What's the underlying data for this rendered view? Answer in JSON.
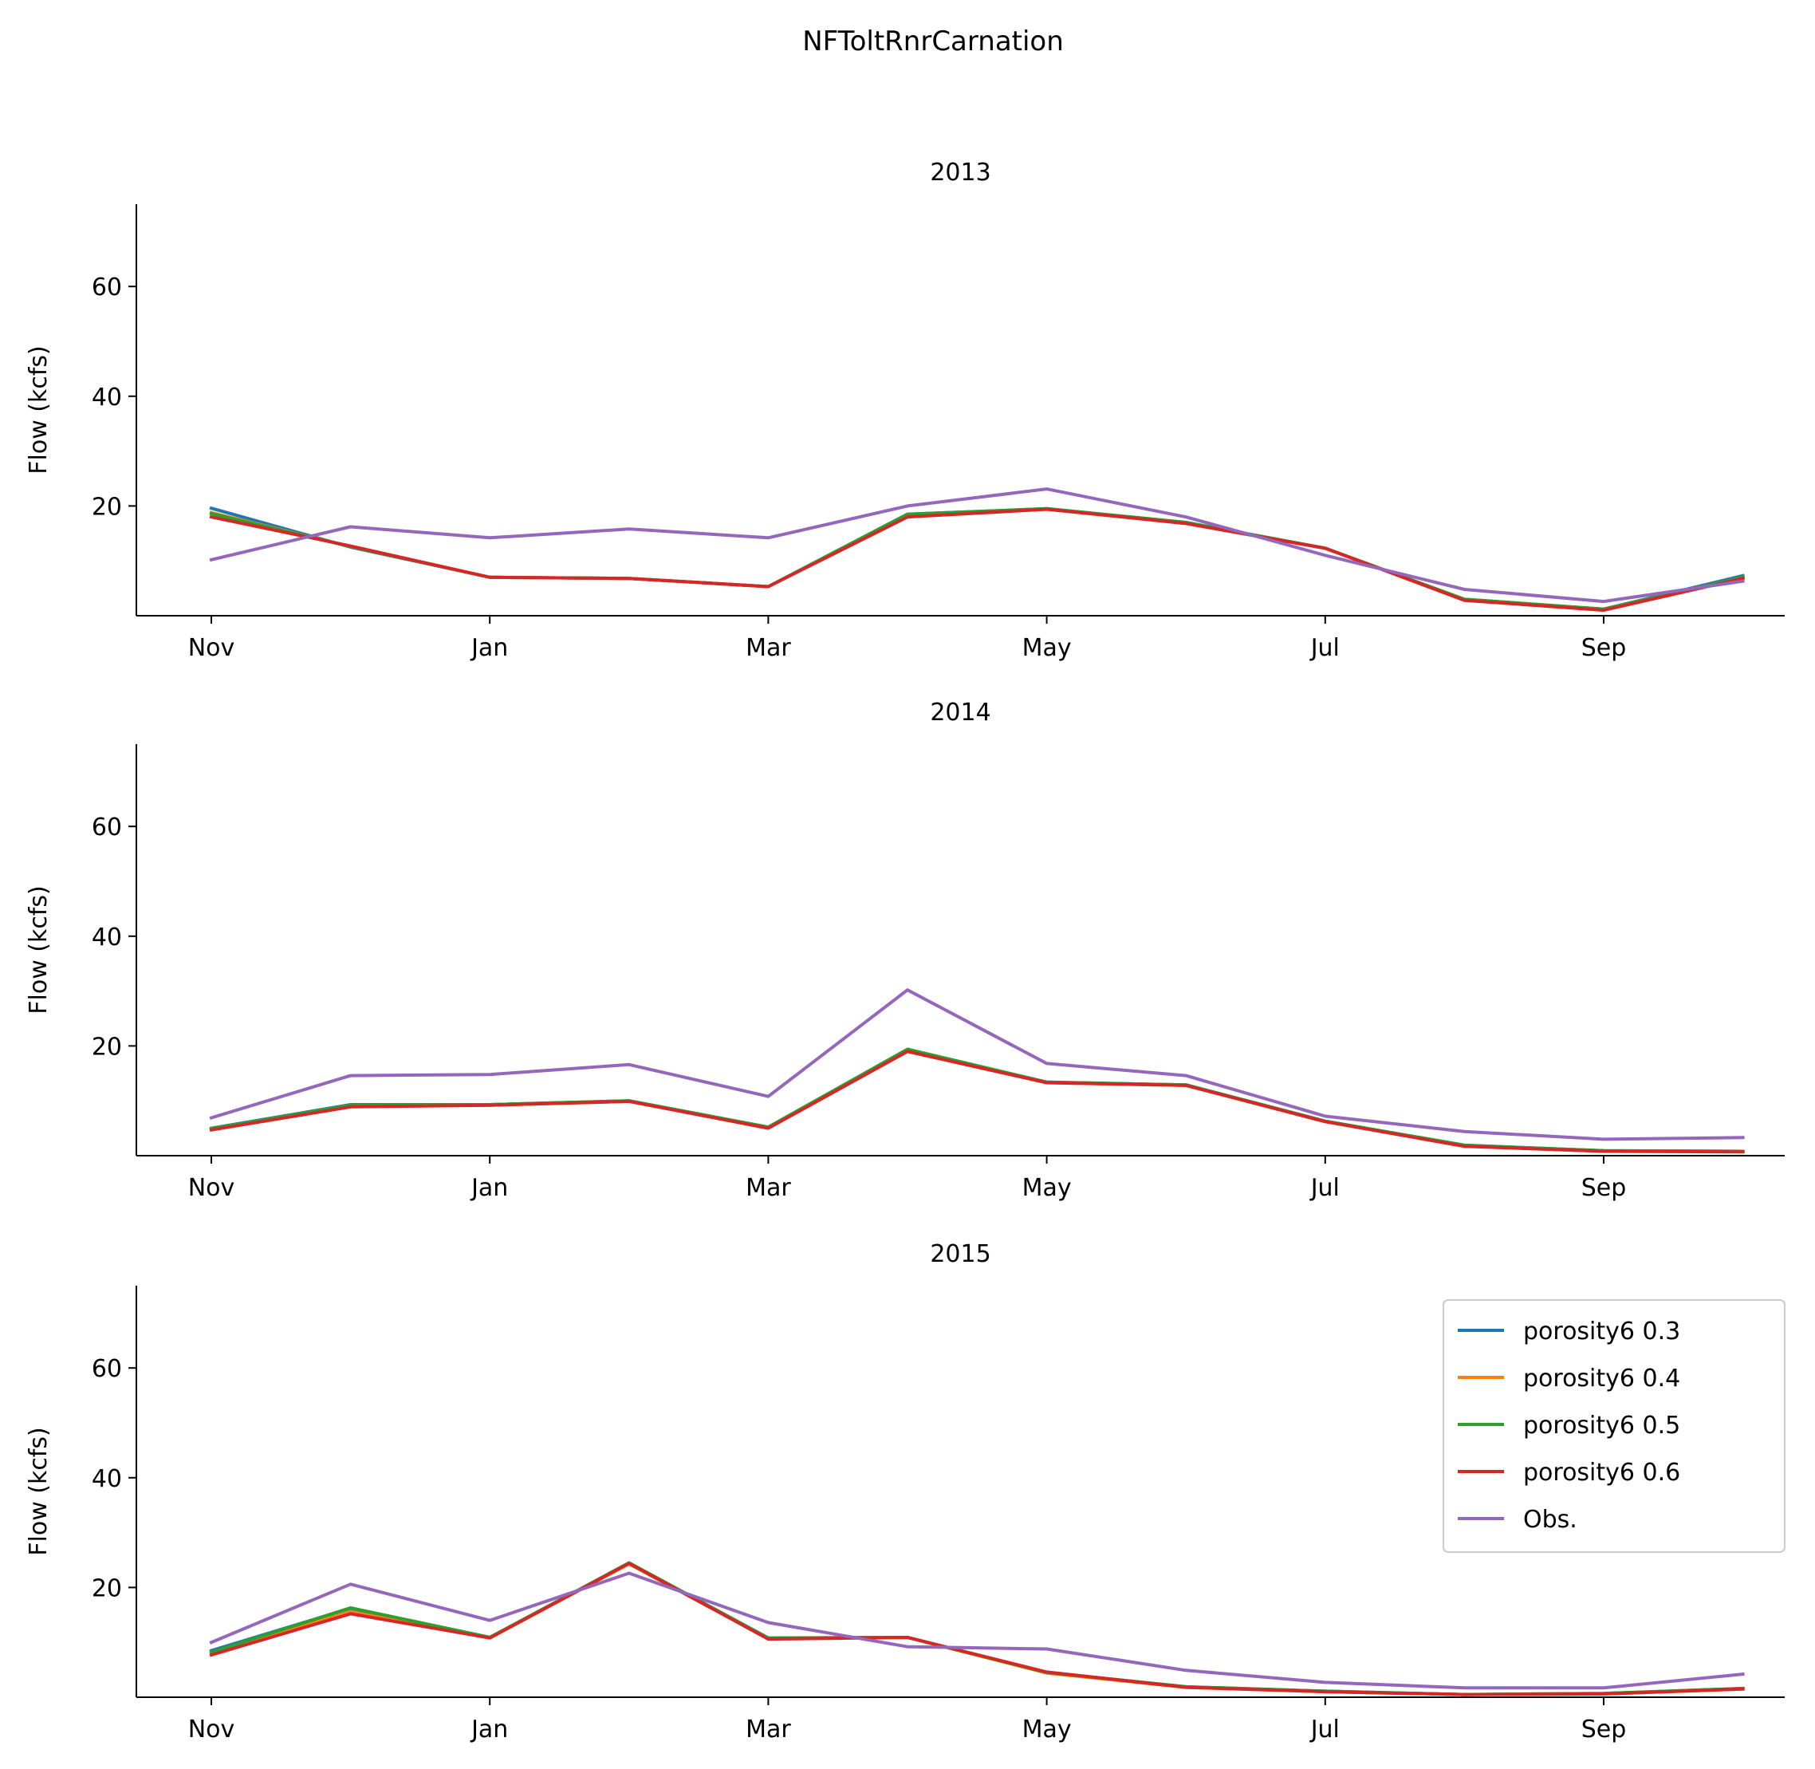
{
  "title": "NFToltRnrCarnation",
  "colors": {
    "porosity6 0.3": "#1f77b4",
    "porosity6 0.4": "#ff7f0e",
    "porosity6 0.5": "#2ca02c",
    "porosity6 0.6": "#d62728",
    "Obs.": "#9467bd"
  },
  "chart_data": [
    {
      "type": "line",
      "title": "2013",
      "ylabel": "Flow (kcfs)",
      "ylim": [
        0,
        75
      ],
      "yticks": [
        20,
        40,
        60
      ],
      "xtick_labels": [
        "Nov",
        "Jan",
        "Mar",
        "May",
        "Jul",
        "Sep"
      ],
      "x": [
        "Nov",
        "Dec",
        "Jan",
        "Feb",
        "Mar",
        "Apr",
        "May",
        "Jun",
        "Jul",
        "Aug",
        "Sep",
        "Oct"
      ],
      "series": [
        {
          "name": "porosity6 0.3",
          "values": [
            19.6,
            12.5,
            7.0,
            6.8,
            5.3,
            18.5,
            19.5,
            17.0,
            12.3,
            3.0,
            1.2,
            7.3
          ]
        },
        {
          "name": "porosity6 0.4",
          "values": [
            18.8,
            12.6,
            7.0,
            6.8,
            5.3,
            18.2,
            19.4,
            16.9,
            12.3,
            3.0,
            1.2,
            7.0
          ]
        },
        {
          "name": "porosity6 0.5",
          "values": [
            18.6,
            12.6,
            7.0,
            6.8,
            5.3,
            18.5,
            19.5,
            17.0,
            12.3,
            3.0,
            1.2,
            7.0
          ]
        },
        {
          "name": "porosity6 0.6",
          "values": [
            18.0,
            12.7,
            7.0,
            6.8,
            5.3,
            18.0,
            19.4,
            16.8,
            12.3,
            2.8,
            1.0,
            6.8
          ]
        },
        {
          "name": "Obs.",
          "values": [
            10.2,
            16.2,
            14.2,
            15.8,
            14.2,
            20.0,
            23.1,
            18.0,
            11.0,
            4.8,
            2.6,
            6.3
          ]
        }
      ]
    },
    {
      "type": "line",
      "title": "2014",
      "ylabel": "Flow (kcfs)",
      "ylim": [
        0,
        75
      ],
      "yticks": [
        20,
        40,
        60
      ],
      "xtick_labels": [
        "Nov",
        "Jan",
        "Mar",
        "May",
        "Jul",
        "Sep"
      ],
      "x": [
        "Nov",
        "Dec",
        "Jan",
        "Feb",
        "Mar",
        "Apr",
        "May",
        "Jun",
        "Jul",
        "Aug",
        "Sep",
        "Oct"
      ],
      "series": [
        {
          "name": "porosity6 0.3",
          "values": [
            5.0,
            9.3,
            9.3,
            10.0,
            5.2,
            19.3,
            13.4,
            12.9,
            6.3,
            1.9,
            0.9,
            0.8
          ]
        },
        {
          "name": "porosity6 0.4",
          "values": [
            4.9,
            9.1,
            9.2,
            9.9,
            5.1,
            19.0,
            13.3,
            12.8,
            6.2,
            1.8,
            0.8,
            0.8
          ]
        },
        {
          "name": "porosity6 0.5",
          "values": [
            4.9,
            9.2,
            9.3,
            10.0,
            5.2,
            19.4,
            13.4,
            12.9,
            6.3,
            1.9,
            0.9,
            0.8
          ]
        },
        {
          "name": "porosity6 0.6",
          "values": [
            4.7,
            8.9,
            9.2,
            9.9,
            5.0,
            19.0,
            13.3,
            12.8,
            6.2,
            1.7,
            0.8,
            0.7
          ]
        },
        {
          "name": "Obs.",
          "values": [
            6.9,
            14.6,
            14.8,
            16.6,
            10.8,
            30.2,
            16.8,
            14.6,
            7.2,
            4.4,
            3.0,
            3.3
          ]
        }
      ]
    },
    {
      "type": "line",
      "title": "2015",
      "ylabel": "Flow (kcfs)",
      "ylim": [
        0,
        75
      ],
      "yticks": [
        20,
        40,
        60
      ],
      "xtick_labels": [
        "Nov",
        "Jan",
        "Mar",
        "May",
        "Jul",
        "Sep"
      ],
      "x": [
        "Nov",
        "Dec",
        "Jan",
        "Feb",
        "Mar",
        "Apr",
        "May",
        "Jun",
        "Jul",
        "Aug",
        "Sep",
        "Oct"
      ],
      "legend": "upper right",
      "series": [
        {
          "name": "porosity6 0.3",
          "values": [
            8.5,
            16.2,
            10.9,
            24.4,
            10.8,
            10.9,
            4.5,
            1.9,
            1.1,
            0.5,
            0.7,
            1.6
          ]
        },
        {
          "name": "porosity6 0.4",
          "values": [
            8.0,
            15.6,
            10.8,
            24.3,
            10.7,
            10.9,
            4.4,
            1.8,
            1.0,
            0.5,
            0.6,
            1.5
          ]
        },
        {
          "name": "porosity6 0.5",
          "values": [
            8.2,
            16.3,
            10.9,
            24.5,
            10.8,
            10.9,
            4.5,
            1.9,
            1.1,
            0.5,
            0.7,
            1.6
          ]
        },
        {
          "name": "porosity6 0.6",
          "values": [
            7.7,
            15.2,
            10.8,
            24.4,
            10.6,
            10.9,
            4.6,
            1.8,
            1.0,
            0.5,
            0.6,
            1.5
          ]
        },
        {
          "name": "Obs.",
          "values": [
            10.0,
            20.6,
            14.0,
            22.6,
            13.6,
            9.2,
            8.8,
            4.9,
            2.7,
            1.7,
            1.7,
            4.2
          ]
        }
      ]
    }
  ]
}
